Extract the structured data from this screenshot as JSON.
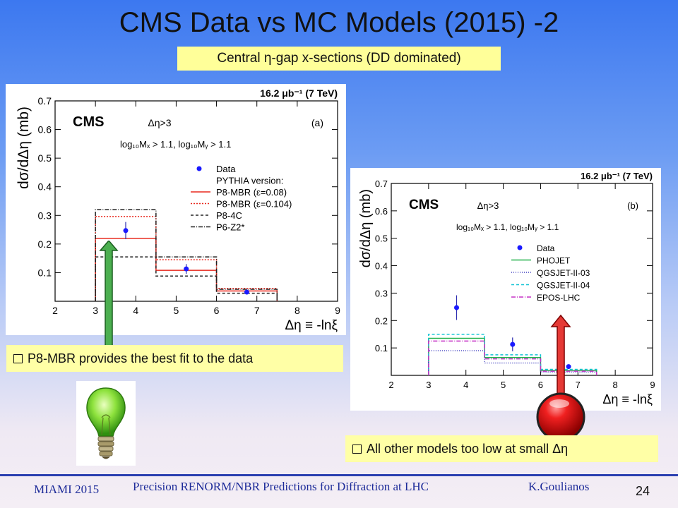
{
  "slide": {
    "title": "CMS Data vs MC Models (2015) -2",
    "subtitle": "Central η-gap x-sections (DD dominated)",
    "note_left": "P8-MBR provides the best fit to the data",
    "note_right": "All other models too low at small Δη",
    "footer_left": "MIAMI 2015",
    "footer_center": "Precision RENORM/NBR Predictions for Diffraction at LHC",
    "footer_author": "K.Goulianos",
    "page_number": "24",
    "colors": {
      "title_bg": "#3c78f0",
      "note_bg": "#ffffa6",
      "green_arrow": "#4caf50",
      "red_arrow": "#e53935"
    }
  },
  "chart_data": [
    {
      "type": "step",
      "panel": "(a)",
      "header": "16.2 μb⁻¹ (7 TeV)",
      "experiment": "CMS",
      "cut_label": "Δη>3",
      "selection": "log₁₀Mₓ > 1.1, log₁₀Mᵧ > 1.1",
      "xlabel": "Δη ≡ -lnξ",
      "ylabel": "dσ/dΔη (mb)",
      "xlim": [
        2,
        9
      ],
      "ylim": [
        0,
        0.7
      ],
      "xticks": [
        2,
        3,
        4,
        5,
        6,
        7,
        8,
        9
      ],
      "yticks": [
        0.1,
        0.2,
        0.3,
        0.4,
        0.5,
        0.6,
        0.7
      ],
      "legend_title": "PYTHIA version:",
      "data": {
        "name": "Data",
        "x": [
          3.75,
          5.25,
          6.75
        ],
        "y": [
          0.247,
          0.113,
          0.032
        ],
        "err": [
          0.03,
          0.017,
          0.005
        ]
      },
      "bin_edges": [
        3,
        4.5,
        6,
        7.5
      ],
      "series": [
        {
          "name": "P8-MBR (ε=0.08)",
          "color": "#e8281d",
          "dash": "",
          "values": [
            0.22,
            0.108,
            0.036
          ]
        },
        {
          "name": "P8-MBR (ε=0.104)",
          "color": "#e8281d",
          "dash": "2,2",
          "values": [
            0.296,
            0.145,
            0.045
          ]
        },
        {
          "name": "P8-4C",
          "color": "#222222",
          "dash": "4,3",
          "values": [
            0.155,
            0.088,
            0.028
          ]
        },
        {
          "name": "P6-Z2*",
          "color": "#222222",
          "dash": "6,2,1,2",
          "values": [
            0.32,
            0.155,
            0.042
          ]
        }
      ]
    },
    {
      "type": "step",
      "panel": "(b)",
      "header": "16.2 μb⁻¹ (7 TeV)",
      "experiment": "CMS",
      "cut_label": "Δη>3",
      "selection": "log₁₀Mₓ > 1.1, log₁₀Mᵧ > 1.1",
      "xlabel": "Δη ≡ -lnξ",
      "ylabel": "dσ/dΔη (mb)",
      "xlim": [
        2,
        9
      ],
      "ylim": [
        0,
        0.7
      ],
      "xticks": [
        2,
        3,
        4,
        5,
        6,
        7,
        8,
        9
      ],
      "yticks": [
        0.1,
        0.2,
        0.3,
        0.4,
        0.5,
        0.6,
        0.7
      ],
      "legend_title": "",
      "data": {
        "name": "Data",
        "x": [
          3.75,
          5.25,
          6.75
        ],
        "y": [
          0.247,
          0.113,
          0.032
        ],
        "err": [
          0.045,
          0.025,
          0.005
        ]
      },
      "bin_edges": [
        3,
        4.5,
        6,
        7.5
      ],
      "series": [
        {
          "name": "PHOJET",
          "color": "#22b14c",
          "dash": "",
          "values": [
            0.135,
            0.065,
            0.018
          ]
        },
        {
          "name": "QGSJET-II-03",
          "color": "#3f3fbf",
          "dash": "1,2",
          "values": [
            0.09,
            0.045,
            0.012
          ]
        },
        {
          "name": "QGSJET-II-04",
          "color": "#12c4d4",
          "dash": "4,3",
          "values": [
            0.15,
            0.075,
            0.022
          ]
        },
        {
          "name": "EPOS-LHC",
          "color": "#c531c5",
          "dash": "6,2,1,2",
          "values": [
            0.125,
            0.06,
            0.015
          ]
        }
      ]
    }
  ]
}
